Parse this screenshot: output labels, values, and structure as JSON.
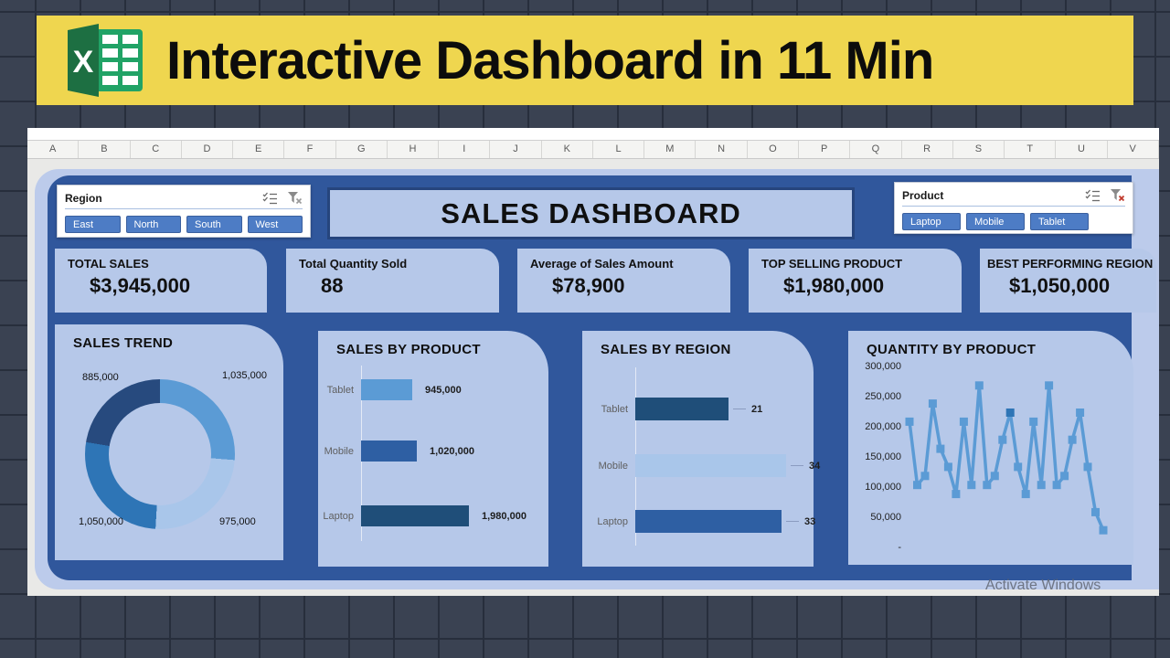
{
  "banner": {
    "title": "Interactive Dashboard in 11 Min",
    "bg_color": "#efd64f"
  },
  "sheet": {
    "columns": [
      "A",
      "B",
      "C",
      "D",
      "E",
      "F",
      "G",
      "H",
      "I",
      "J",
      "K",
      "L",
      "M",
      "N",
      "O",
      "P",
      "Q",
      "R",
      "S",
      "T",
      "U",
      "V"
    ]
  },
  "dashboard": {
    "title": "SALES DASHBOARD",
    "panel_color": "#30579c",
    "card_color": "#b6c8e9",
    "watermark": "Activate Windows",
    "slicers": [
      {
        "name": "Region",
        "items": [
          "East",
          "North",
          "South",
          "West"
        ]
      },
      {
        "name": "Product",
        "items": [
          "Laptop",
          "Mobile",
          "Tablet"
        ]
      }
    ],
    "kpis": [
      {
        "label": "TOTAL SALES",
        "value": "$3,945,000"
      },
      {
        "label": "Total Quantity Sold",
        "value": "88"
      },
      {
        "label": "Average of Sales Amount",
        "value": "$78,900"
      },
      {
        "label": "TOP SELLING PRODUCT",
        "value": "$1,980,000"
      },
      {
        "label": "BEST PERFORMING REGION",
        "value": "$1,050,000"
      }
    ]
  },
  "chart_data": [
    {
      "type": "pie",
      "donut": true,
      "title": "SALES TREND",
      "labels": [
        "1,035,000",
        "975,000",
        "1,050,000",
        "885,000"
      ],
      "values": [
        1035000,
        975000,
        1050000,
        885000
      ],
      "colors": [
        "#5b9bd5",
        "#a9c6ea",
        "#2e75b6",
        "#274a7e"
      ],
      "legend_position": "none"
    },
    {
      "type": "bar",
      "orientation": "horizontal",
      "title": "SALES BY PRODUCT",
      "categories": [
        "Tablet",
        "Mobile",
        "Laptop"
      ],
      "values": [
        945000,
        1020000,
        1980000
      ],
      "value_labels": [
        "945,000",
        "1,020,000",
        "1,980,000"
      ],
      "colors": [
        "#5b9bd5",
        "#2e5fa3",
        "#1f4e79"
      ],
      "xlim": [
        0,
        2000000
      ],
      "grid": false
    },
    {
      "type": "bar",
      "orientation": "horizontal",
      "title": "SALES BY REGION",
      "categories": [
        "Tablet",
        "Mobile",
        "Laptop"
      ],
      "values": [
        21,
        34,
        33
      ],
      "value_labels": [
        "21",
        "34",
        "33"
      ],
      "colors": [
        "#1f4e79",
        "#a9c6ea",
        "#2e5fa3"
      ],
      "xlim": [
        0,
        36
      ],
      "grid": false
    },
    {
      "type": "line",
      "title": "QUANTITY BY PRODUCT",
      "values": [
        210000,
        105000,
        120000,
        240000,
        165000,
        135000,
        90000,
        210000,
        105000,
        270000,
        105000,
        120000,
        180000,
        225000,
        135000,
        90000,
        210000,
        105000,
        270000,
        105000,
        120000,
        180000,
        225000,
        135000,
        60000,
        30000
      ],
      "ylim": [
        0,
        300000
      ],
      "yticks": [
        {
          "label": "300,000",
          "v": 300000
        },
        {
          "label": "250,000",
          "v": 250000
        },
        {
          "label": "200,000",
          "v": 200000
        },
        {
          "label": "150,000",
          "v": 150000
        },
        {
          "label": "100,000",
          "v": 100000
        },
        {
          "label": "50,000",
          "v": 50000
        },
        {
          "label": "-",
          "v": 0
        }
      ],
      "color": "#5b9bd5",
      "highlight_index": 13,
      "highlight_color": "#2e75b6",
      "marker": "square",
      "grid": false
    }
  ]
}
